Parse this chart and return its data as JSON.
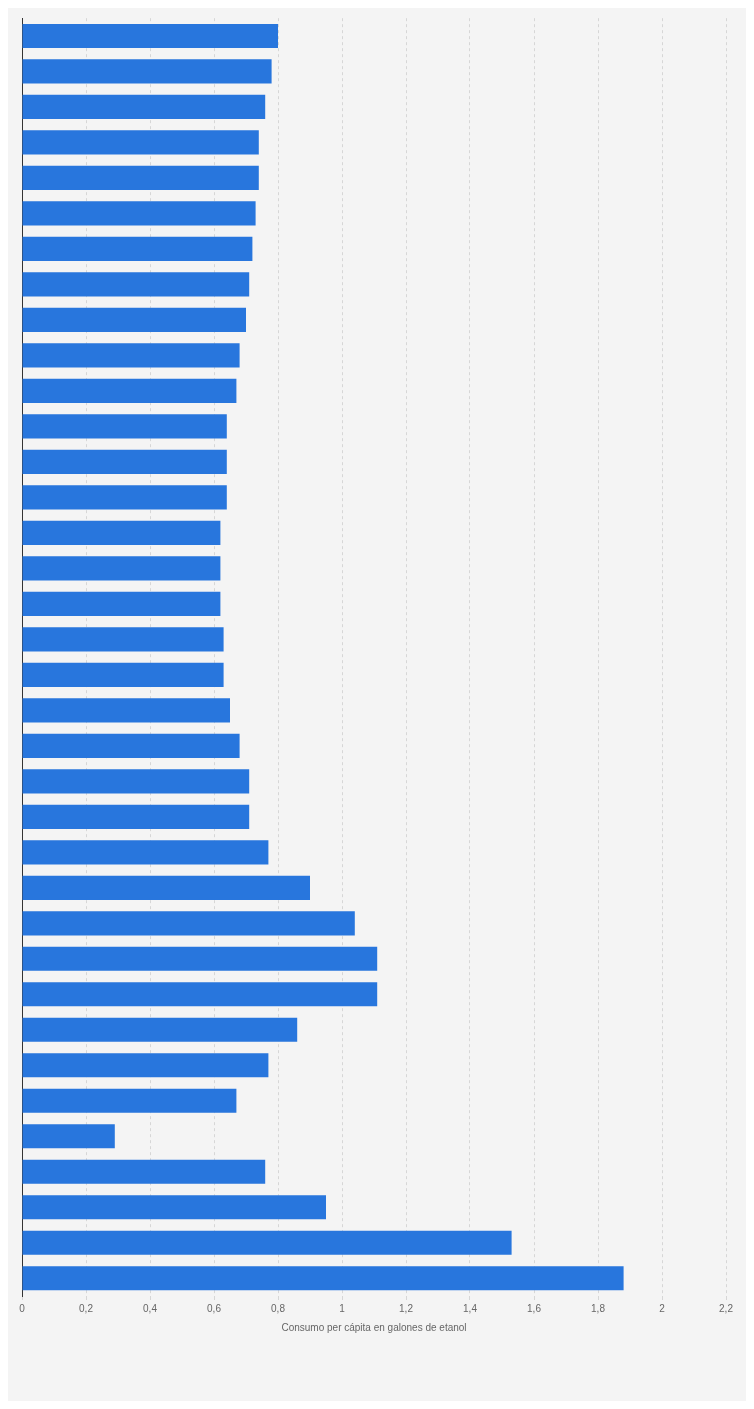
{
  "chart_data": {
    "type": "bar",
    "orientation": "horizontal",
    "xlabel": "Consumo per cápita en galones de etanol",
    "categories": [
      null,
      null,
      null,
      null,
      null,
      null,
      null,
      null,
      null,
      null,
      null,
      null,
      null,
      null,
      null,
      null,
      null,
      null,
      null,
      null,
      null,
      null,
      null,
      null,
      null,
      null,
      null,
      null,
      null,
      null,
      null,
      null,
      null,
      null,
      null,
      null
    ],
    "values": [
      0.8,
      0.78,
      0.76,
      0.74,
      0.74,
      0.73,
      0.72,
      0.71,
      0.7,
      0.68,
      0.67,
      0.64,
      0.64,
      0.64,
      0.62,
      0.62,
      0.62,
      0.63,
      0.63,
      0.65,
      0.68,
      0.71,
      0.71,
      0.77,
      0.9,
      1.04,
      1.11,
      1.11,
      0.86,
      0.77,
      0.67,
      0.29,
      0.76,
      0.95,
      1.53,
      1.88
    ],
    "color": "#2876dd",
    "xlim": [
      0,
      2.2
    ],
    "xticks": [
      0,
      {
        "value": 0.2,
        "label": "0,2"
      },
      {
        "value": 0.4,
        "label": "0,4"
      },
      {
        "value": 0.6,
        "label": "0,6"
      },
      {
        "value": 0.8,
        "label": "0,8"
      },
      1,
      {
        "value": 1.2,
        "label": "1,2"
      },
      {
        "value": 1.4,
        "label": "1,4"
      },
      {
        "value": 1.6,
        "label": "1,6"
      },
      {
        "value": 1.8,
        "label": "1,8"
      },
      2,
      {
        "value": 2.2,
        "label": "2,2"
      }
    ],
    "grid": "x"
  }
}
